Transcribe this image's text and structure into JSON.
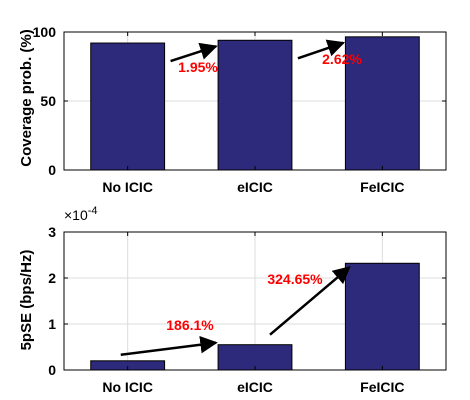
{
  "chart_data": [
    {
      "type": "bar",
      "categories": [
        "No ICIC",
        "eICIC",
        "FeICIC"
      ],
      "values": [
        92,
        94,
        96.5
      ],
      "ylabel": "Coverage prob. (%)",
      "ylim": [
        0,
        100
      ],
      "yticks": [
        0,
        50,
        100
      ],
      "grid": true,
      "bar_color": "#2e2a7b",
      "annotations": [
        {
          "text": "1.95%",
          "from": "No ICIC",
          "to": "eICIC"
        },
        {
          "text": "2.62%",
          "from": "eICIC",
          "to": "FeICIC"
        }
      ]
    },
    {
      "type": "bar",
      "categories": [
        "No ICIC",
        "eICIC",
        "FeICIC"
      ],
      "values": [
        2e-05,
        5.5e-05,
        0.000232
      ],
      "ylabel": "5pSE (bps/Hz)",
      "ylim": [
        0,
        0.0003
      ],
      "yticks": [
        0,
        1,
        2,
        3
      ],
      "scale_exponent_label": "×10",
      "scale_exponent_power": "-4",
      "grid": true,
      "bar_color": "#2e2a7b",
      "annotations": [
        {
          "text": "186.1%",
          "from": "No ICIC",
          "to": "eICIC"
        },
        {
          "text": "324.65%",
          "from": "eICIC",
          "to": "FeICIC"
        }
      ]
    }
  ]
}
